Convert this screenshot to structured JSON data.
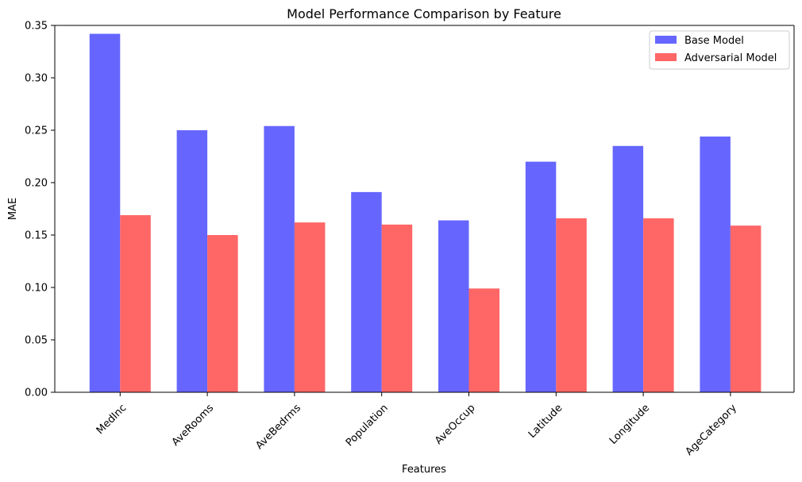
{
  "chart_data": {
    "type": "bar",
    "title": "Model Performance Comparison by Feature",
    "xlabel": "Features",
    "ylabel": "MAE",
    "categories": [
      "MedInc",
      "AveRooms",
      "AveBedrms",
      "Population",
      "AveOccup",
      "Latitude",
      "Longitude",
      "AgeCategory"
    ],
    "series": [
      {
        "name": "Base Model",
        "color": "#6666ff",
        "values": [
          0.342,
          0.25,
          0.254,
          0.191,
          0.164,
          0.22,
          0.235,
          0.244
        ]
      },
      {
        "name": "Adversarial Model",
        "color": "#ff6666",
        "values": [
          0.169,
          0.15,
          0.162,
          0.16,
          0.099,
          0.166,
          0.166,
          0.159
        ]
      }
    ],
    "ylim": [
      0,
      0.35
    ],
    "yticks": [
      "0.00",
      "0.05",
      "0.10",
      "0.15",
      "0.20",
      "0.25",
      "0.30",
      "0.35"
    ],
    "grid": false,
    "legend_position": "top-right"
  }
}
